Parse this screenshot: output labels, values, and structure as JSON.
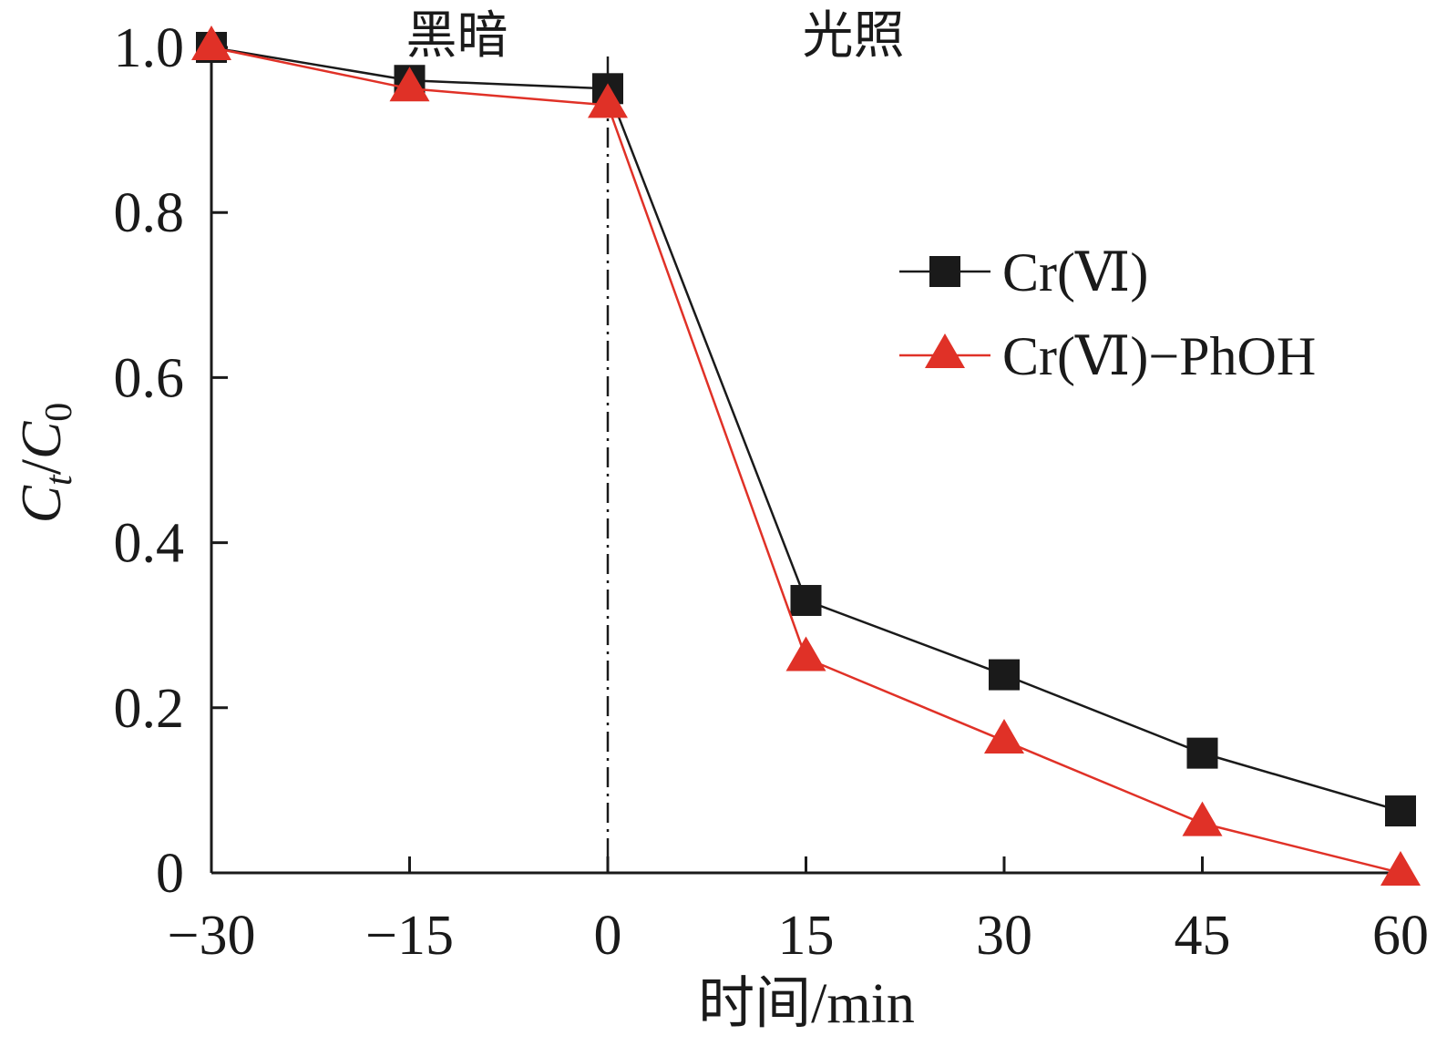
{
  "chart_data": {
    "type": "line",
    "title": "",
    "xlabel": "时间/min",
    "ylabel": {
      "main": "C",
      "sub1": "t",
      "sep": "/",
      "main2": "C",
      "sub2": "0"
    },
    "x": [
      -30,
      -15,
      0,
      15,
      30,
      45,
      60
    ],
    "xlim": [
      -30,
      60
    ],
    "ylim": [
      0,
      1.0
    ],
    "x_ticks": [
      -30,
      -15,
      0,
      15,
      30,
      45,
      60
    ],
    "x_tick_labels": [
      "−30",
      "−15",
      "0",
      "15",
      "30",
      "45",
      "60"
    ],
    "y_ticks": [
      0,
      0.2,
      0.4,
      0.6,
      0.8,
      1.0
    ],
    "y_tick_labels": [
      "0",
      "0.2",
      "0.4",
      "0.6",
      "0.8",
      "1.0"
    ],
    "grid": false,
    "legend_position": "right",
    "divider_x": 0,
    "regions": [
      {
        "label": "黑暗",
        "x": -15
      },
      {
        "label": "光照",
        "x": 15
      }
    ],
    "series": [
      {
        "name": "Cr(Ⅵ)",
        "marker": "square",
        "color": "#1a1a1a",
        "values": [
          1.0,
          0.96,
          0.95,
          0.33,
          0.24,
          0.145,
          0.075
        ]
      },
      {
        "name": "Cr(Ⅵ)−PhOH",
        "marker": "triangle",
        "color": "#e03127",
        "values": [
          1.0,
          0.95,
          0.93,
          0.26,
          0.16,
          0.06,
          0.0
        ]
      }
    ]
  }
}
